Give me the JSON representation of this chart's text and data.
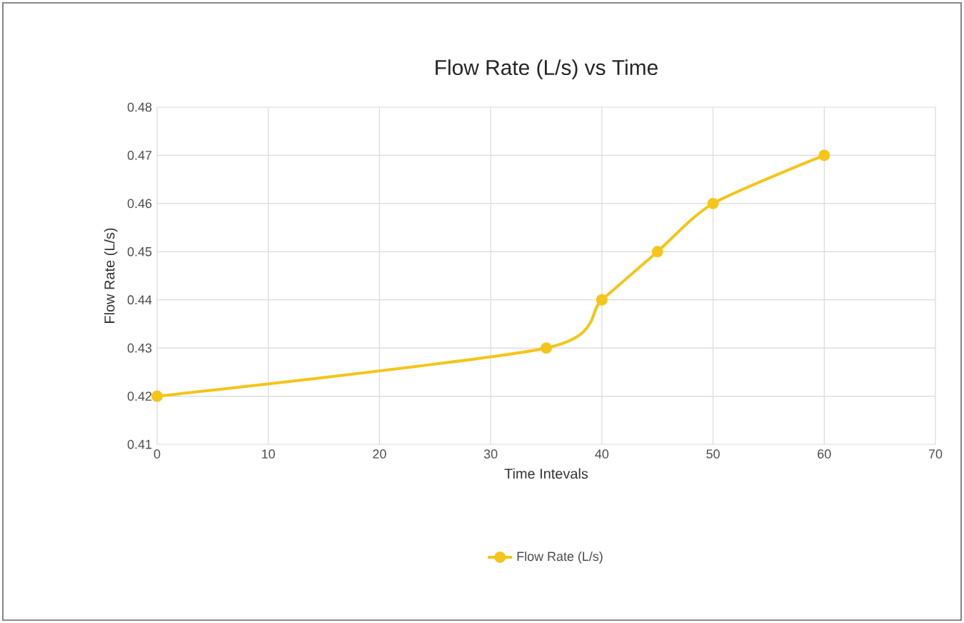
{
  "chart_data": {
    "type": "line",
    "title": "Flow Rate (L/s) vs Time",
    "xlabel": "Time Intevals",
    "ylabel": "Flow Rate (L/s)",
    "x": [
      0,
      35,
      40,
      45,
      50,
      60
    ],
    "series": [
      {
        "name": "Flow Rate (L/s)",
        "color": "#f5c518",
        "values": [
          0.42,
          0.43,
          0.44,
          0.45,
          0.46,
          0.47
        ]
      }
    ],
    "xlim": [
      0,
      70
    ],
    "xticks": [
      0,
      10,
      20,
      30,
      40,
      50,
      60,
      70
    ],
    "ylim": [
      0.41,
      0.48
    ],
    "yticks": [
      0.41,
      0.42,
      0.43,
      0.44,
      0.45,
      0.46,
      0.47,
      0.48
    ],
    "grid": true,
    "legend": "bottom",
    "marker": "circle",
    "line_style": "solid"
  }
}
